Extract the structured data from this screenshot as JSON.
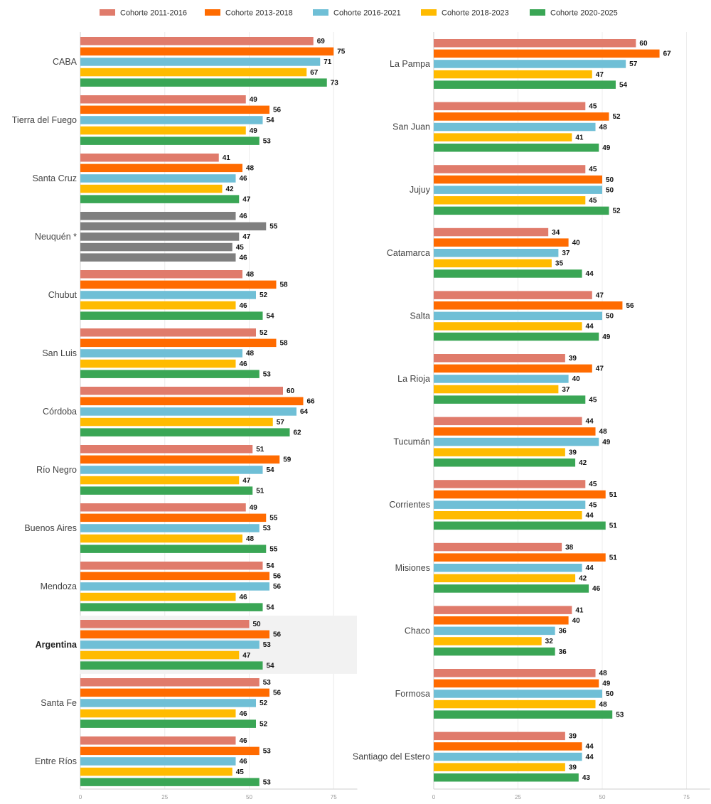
{
  "chart_data": {
    "type": "bar",
    "orientation": "horizontal",
    "legend_position": "top",
    "grid": true,
    "xlim": [
      0,
      82
    ],
    "xticks": [
      "0",
      "25",
      "50",
      "75"
    ],
    "series": [
      {
        "name": "Cohorte 2011-2016",
        "color": "#e07b6b"
      },
      {
        "name": "Cohorte 2013-2018",
        "color": "#ff6b00"
      },
      {
        "name": "Cohorte 2016-2021",
        "color": "#6fbfd6"
      },
      {
        "name": "Cohorte 2018-2023",
        "color": "#ffbb00"
      },
      {
        "name": "Cohorte 2020-2025",
        "color": "#3aa655"
      }
    ],
    "special_color": "#7f7f7f",
    "highlight_color": "#f2f2f2",
    "panels": [
      {
        "categories": [
          {
            "label": "CABA",
            "values": [
              69,
              75,
              71,
              67,
              73
            ]
          },
          {
            "label": "Tierra del Fuego",
            "values": [
              49,
              56,
              54,
              49,
              53
            ]
          },
          {
            "label": "Santa Cruz",
            "values": [
              41,
              48,
              46,
              42,
              47
            ]
          },
          {
            "label": "Neuquén *",
            "values": [
              46,
              55,
              47,
              45,
              46
            ],
            "special": true
          },
          {
            "label": "Chubut",
            "values": [
              48,
              58,
              52,
              46,
              54
            ]
          },
          {
            "label": "San Luis",
            "values": [
              52,
              58,
              48,
              46,
              53
            ]
          },
          {
            "label": "Córdoba",
            "values": [
              60,
              66,
              64,
              57,
              62
            ]
          },
          {
            "label": "Río Negro",
            "values": [
              51,
              59,
              54,
              47,
              51
            ]
          },
          {
            "label": "Buenos Aires",
            "values": [
              49,
              55,
              53,
              48,
              55
            ]
          },
          {
            "label": "Mendoza",
            "values": [
              54,
              56,
              56,
              46,
              54
            ]
          },
          {
            "label": "Argentina",
            "values": [
              50,
              56,
              53,
              47,
              54
            ],
            "highlight": true
          },
          {
            "label": "Santa Fe",
            "values": [
              53,
              56,
              52,
              46,
              52
            ]
          },
          {
            "label": "Entre Ríos",
            "values": [
              46,
              53,
              46,
              45,
              53
            ]
          }
        ]
      },
      {
        "categories": [
          {
            "label": "La Pampa",
            "values": [
              60,
              67,
              57,
              47,
              54
            ]
          },
          {
            "label": "San Juan",
            "values": [
              45,
              52,
              48,
              41,
              49
            ]
          },
          {
            "label": "Jujuy",
            "values": [
              45,
              50,
              50,
              45,
              52
            ]
          },
          {
            "label": "Catamarca",
            "values": [
              34,
              40,
              37,
              35,
              44
            ]
          },
          {
            "label": "Salta",
            "values": [
              47,
              56,
              50,
              44,
              49
            ]
          },
          {
            "label": "La Rioja",
            "values": [
              39,
              47,
              40,
              37,
              45
            ]
          },
          {
            "label": "Tucumán",
            "values": [
              44,
              48,
              49,
              39,
              42
            ]
          },
          {
            "label": "Corrientes",
            "values": [
              45,
              51,
              45,
              44,
              51
            ]
          },
          {
            "label": "Misiones",
            "values": [
              38,
              51,
              44,
              42,
              46
            ]
          },
          {
            "label": "Chaco",
            "values": [
              41,
              40,
              36,
              32,
              36
            ]
          },
          {
            "label": "Formosa",
            "values": [
              48,
              49,
              50,
              48,
              53
            ]
          },
          {
            "label": "Santiago del Estero",
            "values": [
              39,
              44,
              44,
              39,
              43
            ]
          }
        ]
      }
    ]
  }
}
